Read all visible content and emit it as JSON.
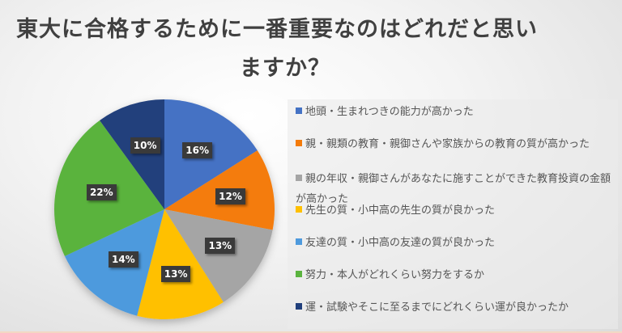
{
  "chart_data": {
    "type": "pie",
    "title": "東大に合格するために一番重要なのはどれだと思いますか？",
    "title_lines": [
      "東大に合格するために一番重要なのはどれだと思い",
      "ますか？"
    ],
    "categories": [
      "地頭・生まれつきの能力が高かった",
      "親・親類の教育・親御さんや家族からの教育の質が高かった",
      "親の年収・親御さんがあなたに施すことができた教育投資の金額が高かった",
      "先生の質・小中高の先生の質が良かった",
      "友達の質・小中高の友達の質が良かった",
      "努力・本人がどれくらい努力をするか",
      "運・試験やそこに至るまでにどれくらい運が良かったか"
    ],
    "values": [
      16,
      12,
      13,
      13,
      14,
      22,
      10
    ],
    "labels": [
      "16%",
      "12%",
      "13%",
      "13%",
      "14%",
      "22%",
      "10%"
    ],
    "colors": [
      "#4472C4",
      "#ED7D31",
      "#A5A5A5",
      "#FFC000",
      "#5B9BD5",
      "#70AD47",
      "#264478"
    ],
    "legend_position": "right",
    "start_angle": "top, clockwise"
  },
  "legend": [
    {
      "label": "地頭・生まれつきの能力が高かった",
      "color": "#4472C4"
    },
    {
      "label": "親・親類の教育・親御さんや家族からの教育の質が高かった",
      "color": "#F47B0A"
    },
    {
      "label": "親の年収・親御さんがあなたに施すことができた教育投資の金額が高かった",
      "color": "#A5A5A5"
    },
    {
      "label": "先生の質・小中高の先生の質が良かった",
      "color": "#FFC000"
    },
    {
      "label": "友達の質・小中高の友達の質が良かった",
      "color": "#4E9ADD"
    },
    {
      "label": "努力・本人がどれくらい努力をするか",
      "color": "#5AB33E"
    },
    {
      "label": "運・試験やそこに至るまでにどれくらい運が良かったか",
      "color": "#203F7C"
    }
  ]
}
